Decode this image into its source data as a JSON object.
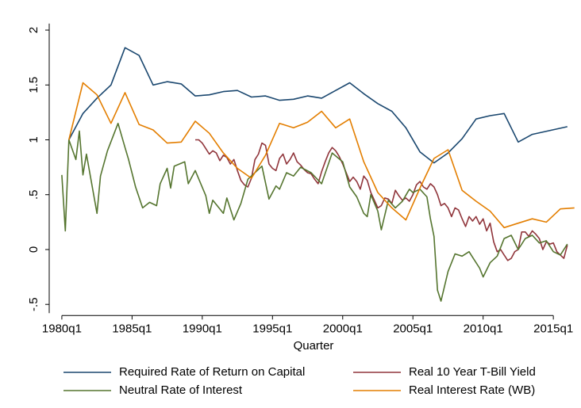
{
  "chart_data": {
    "type": "line",
    "x_label": "Quarter",
    "grid": false,
    "legend": "bottom",
    "xlim": [
      1979.1,
      2016.8
    ],
    "ylim": [
      -0.58,
      2.06
    ],
    "xticks": [
      {
        "value": 1980,
        "label": "1980q1"
      },
      {
        "value": 1985,
        "label": "1985q1"
      },
      {
        "value": 1990,
        "label": "1990q1"
      },
      {
        "value": 1995,
        "label": "1995q1"
      },
      {
        "value": 2000,
        "label": "2000q1"
      },
      {
        "value": 2005,
        "label": "2005q1"
      },
      {
        "value": 2010,
        "label": "2010q1"
      },
      {
        "value": 2015,
        "label": "2015q1"
      }
    ],
    "yticks": [
      {
        "value": -0.5,
        "label": "-.5"
      },
      0,
      {
        "value": 0.5,
        "label": ".5"
      },
      1,
      1.5,
      2
    ],
    "series": [
      {
        "name": "Required Rate of Return on Capital",
        "color": "#1a476f",
        "x": [
          1980.5,
          1981.5,
          1982.5,
          1983.5,
          1984.5,
          1985.5,
          1986.5,
          1987.5,
          1988.5,
          1989.5,
          1990.5,
          1991.5,
          1992.5,
          1993.5,
          1994.5,
          1995.5,
          1996.5,
          1997.5,
          1998.5,
          1999.5,
          2000.5,
          2001.5,
          2002.5,
          2003.5,
          2004.5,
          2005.5,
          2006.5,
          2007.5,
          2008.5,
          2009.5,
          2010.5,
          2011.5,
          2012.5,
          2013.5,
          2016.0
        ],
        "values": [
          1.0,
          1.24,
          1.38,
          1.5,
          1.84,
          1.77,
          1.5,
          1.53,
          1.51,
          1.4,
          1.41,
          1.44,
          1.45,
          1.39,
          1.4,
          1.36,
          1.37,
          1.4,
          1.38,
          1.45,
          1.52,
          1.42,
          1.33,
          1.26,
          1.11,
          0.89,
          0.79,
          0.88,
          1.01,
          1.19,
          1.22,
          1.24,
          0.98,
          1.05,
          1.12
        ]
      },
      {
        "name": "Real 10 Year T-Bill Yield",
        "color": "#90353b",
        "x": [
          1989.5,
          1989.75,
          1990.0,
          1990.25,
          1990.5,
          1990.75,
          1991.0,
          1991.25,
          1991.5,
          1991.75,
          1992.0,
          1992.25,
          1992.5,
          1992.75,
          1993.0,
          1993.25,
          1993.5,
          1993.75,
          1994.0,
          1994.25,
          1994.5,
          1994.75,
          1995.0,
          1995.25,
          1995.5,
          1995.75,
          1996.0,
          1996.25,
          1996.5,
          1996.75,
          1997.0,
          1997.25,
          1997.5,
          1997.75,
          1998.0,
          1998.25,
          1998.5,
          1998.75,
          1999.0,
          1999.25,
          1999.5,
          1999.75,
          2000.0,
          2000.25,
          2000.5,
          2000.75,
          2001.0,
          2001.25,
          2001.5,
          2001.75,
          2002.0,
          2002.25,
          2002.5,
          2002.75,
          2003.0,
          2003.25,
          2003.5,
          2003.75,
          2004.0,
          2004.25,
          2004.5,
          2004.75,
          2005.0,
          2005.25,
          2005.5,
          2005.75,
          2006.0,
          2006.25,
          2006.5,
          2006.75,
          2007.0,
          2007.25,
          2007.5,
          2007.75,
          2008.0,
          2008.25,
          2008.5,
          2008.75,
          2009.0,
          2009.25,
          2009.5,
          2009.75,
          2010.0,
          2010.25,
          2010.5,
          2010.75,
          2011.0,
          2011.25,
          2011.5,
          2011.75,
          2012.0,
          2012.25,
          2012.5,
          2012.75,
          2013.0,
          2013.25,
          2013.5,
          2013.75,
          2014.0,
          2014.25,
          2014.5,
          2014.75,
          2015.0,
          2015.25,
          2015.5,
          2015.75,
          2016.0
        ],
        "values": [
          1.0,
          1.0,
          0.97,
          0.92,
          0.87,
          0.9,
          0.88,
          0.81,
          0.86,
          0.84,
          0.78,
          0.82,
          0.72,
          0.63,
          0.59,
          0.57,
          0.65,
          0.82,
          0.87,
          0.97,
          0.95,
          0.78,
          0.74,
          0.72,
          0.83,
          0.87,
          0.78,
          0.82,
          0.88,
          0.8,
          0.77,
          0.73,
          0.7,
          0.69,
          0.64,
          0.6,
          0.71,
          0.8,
          0.88,
          0.93,
          0.9,
          0.85,
          0.78,
          0.7,
          0.62,
          0.66,
          0.62,
          0.55,
          0.67,
          0.63,
          0.52,
          0.45,
          0.38,
          0.4,
          0.47,
          0.46,
          0.42,
          0.54,
          0.49,
          0.45,
          0.47,
          0.44,
          0.5,
          0.59,
          0.62,
          0.57,
          0.55,
          0.6,
          0.57,
          0.5,
          0.4,
          0.42,
          0.38,
          0.3,
          0.38,
          0.36,
          0.28,
          0.21,
          0.3,
          0.26,
          0.3,
          0.23,
          0.28,
          0.17,
          0.24,
          0.07,
          -0.02,
          0.0,
          -0.05,
          -0.1,
          -0.08,
          -0.02,
          0.0,
          0.16,
          0.16,
          0.12,
          0.17,
          0.14,
          0.1,
          0.0,
          0.07,
          0.05,
          0.06,
          -0.02,
          -0.05,
          -0.08,
          0.04
        ]
      },
      {
        "name": "Neutral Rate of Interest",
        "color": "#55752f",
        "x": [
          1980.0,
          1980.25,
          1980.5,
          1981.0,
          1981.25,
          1981.5,
          1981.75,
          1982.5,
          1982.75,
          1983.25,
          1984.0,
          1984.5,
          1984.75,
          1985.25,
          1985.75,
          1986.25,
          1986.75,
          1987.0,
          1987.5,
          1987.75,
          1988.0,
          1988.75,
          1989.0,
          1989.5,
          1990.25,
          1990.5,
          1990.75,
          1991.5,
          1991.75,
          1992.25,
          1992.75,
          1993.25,
          1994.25,
          1994.75,
          1995.25,
          1995.5,
          1996.0,
          1996.5,
          1997.0,
          1997.75,
          1998.5,
          1999.25,
          2000.0,
          2000.5,
          2001.0,
          2001.5,
          2001.75,
          2002.0,
          2002.5,
          2002.75,
          2003.25,
          2003.75,
          2004.25,
          2004.75,
          2005.0,
          2005.5,
          2006.0,
          2006.25,
          2006.5,
          2006.75,
          2007.0,
          2007.5,
          2008.0,
          2008.5,
          2009.0,
          2009.25,
          2009.75,
          2010.0,
          2010.5,
          2011.0,
          2011.5,
          2012.0,
          2012.5,
          2013.0,
          2013.5,
          2014.0,
          2014.5,
          2015.0,
          2015.5,
          2016.0
        ],
        "values": [
          0.68,
          0.17,
          1.0,
          0.82,
          1.08,
          0.68,
          0.87,
          0.33,
          0.67,
          0.9,
          1.15,
          0.93,
          0.82,
          0.57,
          0.38,
          0.43,
          0.4,
          0.6,
          0.74,
          0.56,
          0.76,
          0.8,
          0.6,
          0.72,
          0.49,
          0.33,
          0.45,
          0.33,
          0.47,
          0.27,
          0.42,
          0.64,
          0.76,
          0.46,
          0.58,
          0.55,
          0.7,
          0.67,
          0.75,
          0.7,
          0.6,
          0.88,
          0.8,
          0.57,
          0.48,
          0.33,
          0.3,
          0.5,
          0.35,
          0.18,
          0.45,
          0.38,
          0.44,
          0.55,
          0.52,
          0.55,
          0.48,
          0.28,
          0.12,
          -0.37,
          -0.47,
          -0.2,
          -0.04,
          -0.06,
          -0.02,
          -0.07,
          -0.17,
          -0.25,
          -0.12,
          -0.06,
          0.1,
          0.13,
          0.0,
          0.1,
          0.13,
          0.06,
          0.08,
          -0.02,
          -0.05,
          0.05
        ]
      },
      {
        "name": "Real Interest Rate (WB)",
        "color": "#e37e00",
        "x": [
          1980.5,
          1981.5,
          1982.5,
          1983.5,
          1984.5,
          1985.5,
          1986.5,
          1987.5,
          1988.5,
          1989.5,
          1990.5,
          1991.5,
          1992.5,
          1993.5,
          1994.5,
          1995.5,
          1996.5,
          1997.5,
          1998.5,
          1999.5,
          2000.5,
          2001.5,
          2002.5,
          2003.5,
          2004.5,
          2005.5,
          2006.5,
          2007.5,
          2008.5,
          2009.5,
          2010.5,
          2011.5,
          2012.5,
          2013.5,
          2014.5,
          2015.5,
          2016.5
        ],
        "values": [
          1.0,
          1.52,
          1.41,
          1.15,
          1.43,
          1.14,
          1.09,
          0.97,
          0.98,
          1.17,
          1.06,
          0.88,
          0.74,
          0.65,
          0.86,
          1.15,
          1.11,
          1.16,
          1.26,
          1.11,
          1.19,
          0.8,
          0.52,
          0.38,
          0.27,
          0.56,
          0.83,
          0.91,
          0.54,
          0.44,
          0.35,
          0.2,
          0.24,
          0.28,
          0.25,
          0.37,
          0.38
        ]
      }
    ]
  }
}
